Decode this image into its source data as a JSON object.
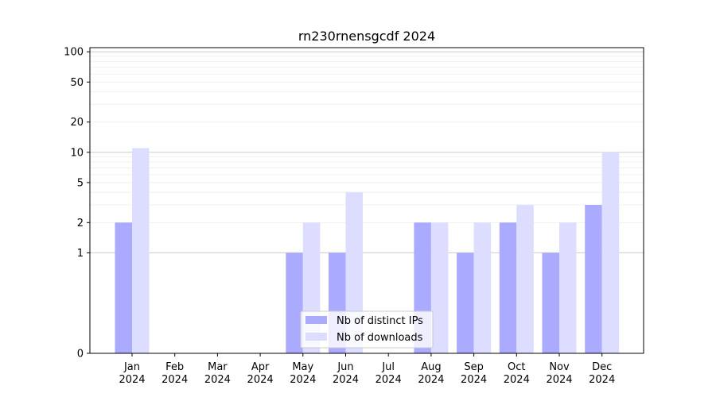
{
  "chart_data": {
    "type": "bar",
    "title": "rn230rnensgcdf 2024",
    "xlabel": "",
    "ylabel": "",
    "yscale": "symlog",
    "ylim": [
      0,
      110
    ],
    "yticks": [
      0,
      1,
      2,
      5,
      10,
      20,
      50,
      100
    ],
    "ytick_labels": [
      "0",
      "1",
      "2",
      "5",
      "10",
      "20",
      "50",
      "100"
    ],
    "grid": true,
    "legend_position": "bottom-center",
    "categories": [
      "Jan\n2024",
      "Feb\n2024",
      "Mar\n2024",
      "Apr\n2024",
      "May\n2024",
      "Jun\n2024",
      "Jul\n2024",
      "Aug\n2024",
      "Sep\n2024",
      "Oct\n2024",
      "Nov\n2024",
      "Dec\n2024"
    ],
    "category_month": [
      "Jan",
      "Feb",
      "Mar",
      "Apr",
      "May",
      "Jun",
      "Jul",
      "Aug",
      "Sep",
      "Oct",
      "Nov",
      "Dec"
    ],
    "category_year": [
      "2024",
      "2024",
      "2024",
      "2024",
      "2024",
      "2024",
      "2024",
      "2024",
      "2024",
      "2024",
      "2024",
      "2024"
    ],
    "series": [
      {
        "name": "Nb of distinct IPs",
        "color": "#aaaaff",
        "values": [
          2,
          0,
          0,
          0,
          1,
          1,
          0,
          2,
          1,
          2,
          1,
          3
        ]
      },
      {
        "name": "Nb of downloads",
        "color": "#ddddff",
        "values": [
          11,
          0,
          0,
          0,
          2,
          4,
          0,
          2,
          2,
          3,
          2,
          10
        ]
      }
    ]
  }
}
